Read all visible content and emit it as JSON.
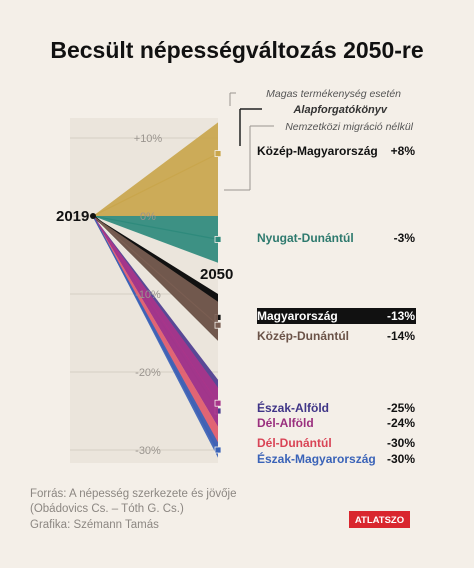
{
  "chart_data": {
    "type": "area",
    "title": "Becsült népességváltozás 2050-re",
    "x": [
      "2019",
      "2050"
    ],
    "y_ticks": [
      "+10%",
      "0%",
      "-10%",
      "-20%",
      "-30%"
    ],
    "y_tick_values": [
      10,
      0,
      -10,
      -20,
      -30
    ],
    "ylim": [
      -30,
      10
    ],
    "grid": true,
    "legend": {
      "placement": "top-right",
      "entries": [
        "Magas termékenység esetén",
        "Alapforgatókönyv",
        "Nemzetközi migráció nélkül"
      ]
    },
    "series": [
      {
        "name": "Közép-Magyarország",
        "value_label": "+8%",
        "high": 12,
        "base": 8,
        "low": 0,
        "color": "#c9a64c",
        "label_color": "#111111"
      },
      {
        "name": "Nyugat-Dunántúl",
        "value_label": "-3%",
        "high": 0,
        "base": -3,
        "low": -6,
        "color": "#2e8a7c",
        "label_color": "#2e7a6e"
      },
      {
        "name": "Magyarország",
        "value_label": "-13%",
        "high": -10,
        "base": -13,
        "low": -16,
        "color": "#111111",
        "label_color": "#ffffff",
        "highlight": true
      },
      {
        "name": "Közép-Dunántúl",
        "value_label": "-14%",
        "high": -11,
        "base": -14,
        "low": -16,
        "color": "#7a5e52",
        "label_color": "#6b5348"
      },
      {
        "name": "Észak-Alföld",
        "value_label": "-25%",
        "high": -21,
        "base": -25,
        "low": -27,
        "color": "#4b3c8f",
        "label_color": "#3f3587"
      },
      {
        "name": "Dél-Alföld",
        "value_label": "-24%",
        "high": -22,
        "base": -24,
        "low": -27,
        "color": "#a8358a",
        "label_color": "#9a2f7e"
      },
      {
        "name": "Dél-Dunántúl",
        "value_label": "-30%",
        "high": -27,
        "base": -30,
        "low": -30.5,
        "color": "#e05a6a",
        "label_color": "#d94456"
      },
      {
        "name": "Észak-Magyarország",
        "value_label": "-30%",
        "high": -29,
        "base": -30,
        "low": -31,
        "color": "#3a63b8",
        "label_color": "#3a63b8"
      }
    ]
  },
  "footer": {
    "source_line1": "Forrás: A népesség szerkezete és jövője",
    "source_line2": "(Obádovics Cs. – Tóth G. Cs.)",
    "graphic": "Grafika: Szémann Tamás",
    "logo_text": "ATLATSZO"
  }
}
